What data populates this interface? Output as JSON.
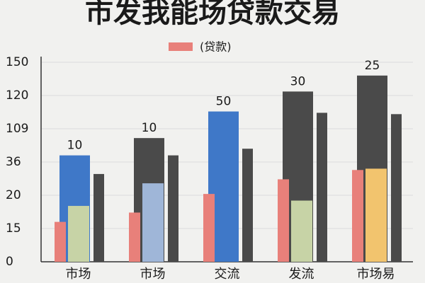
{
  "chart_data": {
    "type": "bar",
    "title": "市发我能场贷款交易",
    "categories": [
      "市场",
      "市场",
      "交流",
      "发流",
      "市场易"
    ],
    "series": [
      {
        "color": [
          "#3f78c8",
          "#4a4a4a",
          "#3f78c8",
          "#4a4a4a",
          "#4a4a4a"
        ],
        "values": [
          80,
          93,
          113,
          128,
          140
        ]
      },
      {
        "name": "(贷款)",
        "color": "#e8807a",
        "values": [
          30,
          37,
          51,
          62,
          69
        ]
      },
      {
        "color": [
          "#c7d3a6",
          "#9fb6d8",
          null,
          "#c7d3a6",
          "#f2c46e"
        ],
        "values": [
          42,
          59,
          null,
          46,
          70
        ]
      },
      {
        "color": "#4a4a4a",
        "values": [
          66,
          80,
          85,
          112,
          111
        ]
      }
    ],
    "annotations": [
      "10",
      "10",
      "50",
      "30",
      "25"
    ],
    "ylim": [
      0,
      150
    ],
    "yticks": [
      0,
      {
        "value": 25,
        "label": "15"
      },
      {
        "value": 50,
        "label": "20"
      },
      {
        "value": 75,
        "label": "36"
      },
      {
        "value": 100,
        "label": "109"
      },
      {
        "value": 125,
        "label": "120"
      },
      150
    ],
    "grid": true
  }
}
